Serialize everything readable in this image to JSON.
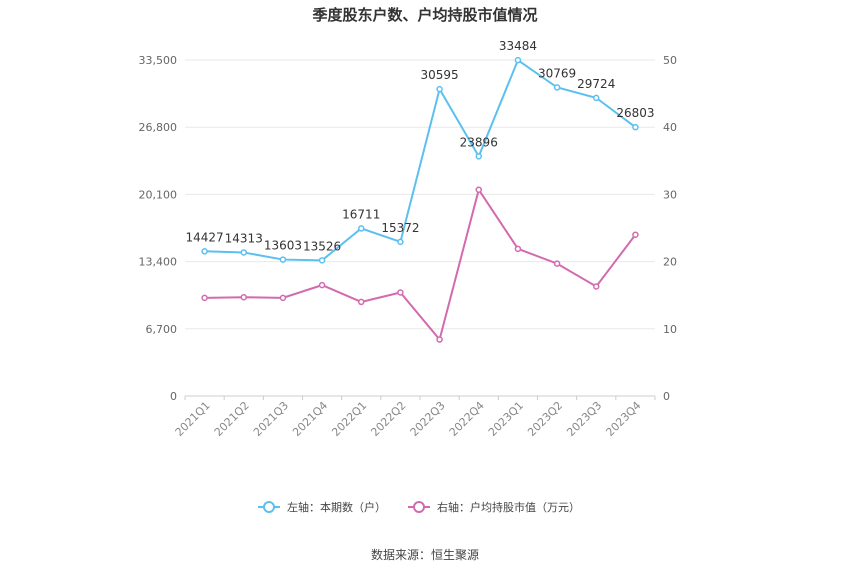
{
  "chart_data": {
    "type": "line",
    "title": "季度股东户数、户均持股市值情况",
    "source": "数据来源：恒生聚源",
    "categories": [
      "2021Q1",
      "2021Q2",
      "2021Q3",
      "2021Q4",
      "2022Q1",
      "2022Q2",
      "2022Q3",
      "2022Q4",
      "2023Q1",
      "2023Q2",
      "2023Q3",
      "2023Q4"
    ],
    "left_axis": {
      "ylim": [
        0,
        33500
      ],
      "ticks": [
        "0",
        "6,700",
        "13,400",
        "20,100",
        "26,800",
        "33,500"
      ]
    },
    "right_axis": {
      "ylim": [
        0,
        50
      ],
      "ticks": [
        "0",
        "10",
        "20",
        "30",
        "40",
        "50"
      ]
    },
    "series": [
      {
        "name": "左轴：本期数（户）",
        "axis": "left",
        "color": "#5bc0f0",
        "values": [
          14427,
          14313,
          13603,
          13526,
          16711,
          15372,
          30595,
          23896,
          33484,
          30769,
          29724,
          26803
        ],
        "labels": [
          "14427",
          "14313",
          "13603",
          "13526",
          "16711",
          "15372",
          "30595",
          "23896",
          "33484",
          "30769",
          "29724",
          "26803"
        ]
      },
      {
        "name": "右轴：户均持股市值（万元）",
        "axis": "right",
        "color": "#d36aaf",
        "values": [
          14.6,
          14.7,
          14.6,
          16.5,
          14.0,
          15.4,
          8.4,
          30.7,
          21.9,
          19.7,
          16.3,
          24.0
        ]
      }
    ],
    "legend_position": "bottom",
    "grid": true
  }
}
